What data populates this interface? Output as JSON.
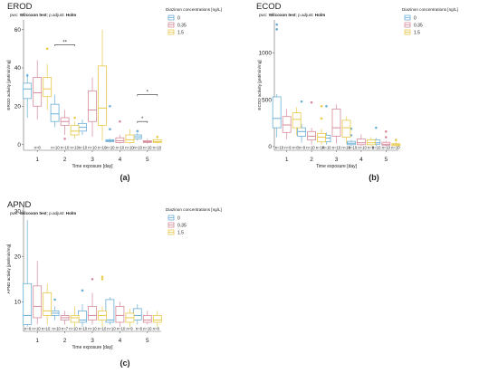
{
  "figure": {
    "panel_labels": [
      "(a)",
      "(b)",
      "(c)"
    ]
  },
  "colors": {
    "0": "#6aaed6",
    "0.35": "#d68a9a",
    "1.5": "#e8c94a",
    "axis": "#666666",
    "text": "#222222"
  },
  "chart_data": [
    {
      "type": "box",
      "title": "EROD",
      "subtitle": {
        "prefix": "pwc: ",
        "test": "Wilcoxon test",
        "mid": "; p.adjust: ",
        "adjust": "Holm"
      },
      "xlabel": "Time exposure [day]",
      "ylabel": "EROD activity [pM/min/mg]",
      "ylim": [
        -3,
        65
      ],
      "yticks": [
        0,
        20,
        40,
        60
      ],
      "categories": [
        "1",
        "2",
        "3",
        "4",
        "5"
      ],
      "legend": {
        "title": "Diazinon concentrations [ng/L]",
        "entries": [
          "0",
          "0.35",
          "1.5"
        ],
        "position": "top-right"
      },
      "n_labels": [
        "n=8",
        "n=10 n=10 n=10",
        "n=10 n=10 n=10",
        "n=10 n=10 n=10",
        "n=10 n=10 n=10"
      ],
      "series": [
        {
          "name": "0",
          "boxes": [
            {
              "low": 14,
              "q1": 24,
              "med": 29,
              "q3": 32,
              "high": 37,
              "out": [
                36
              ]
            },
            {
              "low": 9,
              "q1": 12,
              "med": 16,
              "q3": 21,
              "high": 26,
              "out": []
            },
            {
              "low": 5,
              "q1": 7,
              "med": 9,
              "q3": 11,
              "high": 13,
              "out": []
            },
            {
              "low": 1,
              "q1": 1.5,
              "med": 2,
              "q3": 2.5,
              "high": 3,
              "out": [
                20,
                8
              ]
            },
            {
              "low": 2,
              "q1": 3,
              "med": 4,
              "q3": 5,
              "high": 6,
              "out": [
                7
              ]
            }
          ]
        },
        {
          "name": "0.35",
          "boxes": [
            {
              "low": 13,
              "q1": 20,
              "med": 27,
              "q3": 35,
              "high": 44,
              "out": []
            },
            {
              "low": 5,
              "q1": 10,
              "med": 12,
              "q3": 14,
              "high": 18,
              "out": [
                3
              ]
            },
            {
              "low": 4,
              "q1": 12,
              "med": 18,
              "q3": 28,
              "high": 35,
              "out": []
            },
            {
              "low": 0.5,
              "q1": 1,
              "med": 2,
              "q3": 3.5,
              "high": 5,
              "out": [
                12
              ]
            },
            {
              "low": 0.5,
              "q1": 1,
              "med": 1.5,
              "q3": 2,
              "high": 3,
              "out": []
            }
          ]
        },
        {
          "name": "1.5",
          "boxes": [
            {
              "low": 18,
              "q1": 25,
              "med": 29,
              "q3": 35,
              "high": 42,
              "out": [
                50
              ]
            },
            {
              "low": 3,
              "q1": 5,
              "med": 7,
              "q3": 10,
              "high": 12,
              "out": [
                14
              ]
            },
            {
              "low": 2,
              "q1": 10,
              "med": 19,
              "q3": 41,
              "high": 60,
              "out": []
            },
            {
              "low": 0.5,
              "q1": 1,
              "med": 2.5,
              "q3": 5,
              "high": 8,
              "out": []
            },
            {
              "low": 0.5,
              "q1": 1,
              "med": 1.5,
              "q3": 2.5,
              "high": 3,
              "out": [
                4
              ]
            }
          ]
        }
      ],
      "brackets": [
        {
          "category": "2",
          "from": "0",
          "to": "1.5",
          "y": 52,
          "label": "**"
        },
        {
          "category": "5",
          "from": "0",
          "to": "1.5",
          "y": 26,
          "label": "*"
        },
        {
          "category": "5",
          "from": "0",
          "to": "0.35",
          "y": 12,
          "label": "*"
        }
      ]
    },
    {
      "type": "box",
      "title": "ECOD",
      "subtitle": {
        "prefix": "pwc: ",
        "test": "Wilcoxon test",
        "mid": "; p.adjust: ",
        "adjust": "Holm"
      },
      "xlabel": "Time exposure [day]",
      "ylabel": "ECOD activity [pM/min/mg]",
      "ylim": [
        -40,
        1350
      ],
      "yticks": [
        0,
        500,
        1000
      ],
      "categories": [
        "1",
        "2",
        "3",
        "4",
        "5"
      ],
      "legend": {
        "title": "Diazinon concentrations [ng/L]",
        "entries": [
          "0",
          "0.35",
          "1.5"
        ],
        "position": "top-right"
      },
      "n_labels": [
        "n=10 n=9 n=8",
        "n=9 n=10 n=10",
        "n=10 n=10 n=10",
        "n=10 n=10 n=9",
        "n=10 n=10 n=10"
      ],
      "series": [
        {
          "name": "0",
          "boxes": [
            {
              "low": 100,
              "q1": 200,
              "med": 300,
              "q3": 530,
              "high": 560,
              "out": [
                1300,
                1250
              ]
            },
            {
              "low": 40,
              "q1": 110,
              "med": 160,
              "q3": 200,
              "high": 240,
              "out": [
                480
              ]
            },
            {
              "low": 20,
              "q1": 50,
              "med": 90,
              "q3": 120,
              "high": 150,
              "out": [
                430
              ]
            },
            {
              "low": 5,
              "q1": 20,
              "med": 35,
              "q3": 55,
              "high": 70,
              "out": [
                190,
                120
              ]
            },
            {
              "low": 5,
              "q1": 25,
              "med": 40,
              "q3": 70,
              "high": 90,
              "out": [
                200
              ]
            }
          ]
        },
        {
          "name": "0.35",
          "boxes": [
            {
              "low": 80,
              "q1": 150,
              "med": 230,
              "q3": 320,
              "high": 400,
              "out": []
            },
            {
              "low": 20,
              "q1": 70,
              "med": 110,
              "q3": 160,
              "high": 200,
              "out": [
                470
              ]
            },
            {
              "low": 30,
              "q1": 110,
              "med": 200,
              "q3": 400,
              "high": 450,
              "out": []
            },
            {
              "low": 5,
              "q1": 20,
              "med": 40,
              "q3": 80,
              "high": 130,
              "out": []
            },
            {
              "low": 5,
              "q1": 15,
              "med": 25,
              "q3": 45,
              "high": 60,
              "out": [
                100,
                160
              ]
            }
          ]
        },
        {
          "name": "1.5",
          "boxes": [
            {
              "low": 120,
              "q1": 200,
              "med": 290,
              "q3": 360,
              "high": 420,
              "out": []
            },
            {
              "low": 20,
              "q1": 50,
              "med": 100,
              "q3": 140,
              "high": 190,
              "out": [
                430,
                300
              ]
            },
            {
              "low": 30,
              "q1": 100,
              "med": 200,
              "q3": 280,
              "high": 320,
              "out": []
            },
            {
              "low": 5,
              "q1": 20,
              "med": 40,
              "q3": 70,
              "high": 100,
              "out": []
            },
            {
              "low": 5,
              "q1": 10,
              "med": 20,
              "q3": 30,
              "high": 50,
              "out": [
                70
              ]
            }
          ]
        }
      ],
      "brackets": []
    },
    {
      "type": "box",
      "title": "APND",
      "subtitle": {
        "prefix": "pwc: ",
        "test": "Wilcoxon test",
        "mid": "; p.adjust: ",
        "adjust": "Holm"
      },
      "xlabel": "Time exposure [day]",
      "ylabel": "APND activity [pM/min/mg]",
      "ylim": [
        3.5,
        31
      ],
      "yticks": [
        10,
        20,
        30
      ],
      "categories": [
        "1",
        "2",
        "3",
        "4",
        "5"
      ],
      "legend": {
        "title": "Diazinon concentrations [ng/L]",
        "entries": [
          "0",
          "0.35",
          "1.5"
        ],
        "position": "top-right"
      },
      "n_labels": [
        "n=6 n=10 n=10",
        "n=10 n=7 n=10",
        "n=10 n=10 n=10",
        "n=10 n=10 n=9",
        "n=6 n=10 n=8"
      ],
      "series": [
        {
          "name": "0",
          "boxes": [
            {
              "low": 4.5,
              "q1": 5,
              "med": 7,
              "q3": 14,
              "high": 28,
              "out": []
            },
            {
              "low": 6,
              "q1": 7,
              "med": 7.5,
              "q3": 8,
              "high": 9,
              "out": [
                10.5
              ]
            },
            {
              "low": 4.5,
              "q1": 5.5,
              "med": 6,
              "q3": 8,
              "high": 9.5,
              "out": [
                12.5
              ]
            },
            {
              "low": 5,
              "q1": 5.5,
              "med": 6,
              "q3": 10.5,
              "high": 11,
              "out": []
            },
            {
              "low": 5,
              "q1": 6,
              "med": 7,
              "q3": 8.5,
              "high": 9.5,
              "out": []
            }
          ]
        },
        {
          "name": "0.35",
          "boxes": [
            {
              "low": 5,
              "q1": 6.5,
              "med": 9,
              "q3": 13.5,
              "high": 19,
              "out": []
            },
            {
              "low": 5,
              "q1": 6,
              "med": 6.5,
              "q3": 7,
              "high": 8,
              "out": []
            },
            {
              "low": 5,
              "q1": 6,
              "med": 7,
              "q3": 9,
              "high": 12,
              "out": [
                15
              ]
            },
            {
              "low": 4.5,
              "q1": 5.5,
              "med": 7,
              "q3": 9,
              "high": 10,
              "out": []
            },
            {
              "low": 5,
              "q1": 5.5,
              "med": 6,
              "q3": 7,
              "high": 8,
              "out": []
            }
          ]
        },
        {
          "name": "1.5",
          "boxes": [
            {
              "low": 5,
              "q1": 7,
              "med": 8,
              "q3": 12,
              "high": 14,
              "out": []
            },
            {
              "low": 4.5,
              "q1": 5.5,
              "med": 6.5,
              "q3": 7,
              "high": 9,
              "out": []
            },
            {
              "low": 4.5,
              "q1": 6,
              "med": 7,
              "q3": 8,
              "high": 9,
              "out": [
                15.5,
                15
              ]
            },
            {
              "low": 4.5,
              "q1": 5.5,
              "med": 6.5,
              "q3": 7.5,
              "high": 8.5,
              "out": []
            },
            {
              "low": 4.5,
              "q1": 5.5,
              "med": 6,
              "q3": 7,
              "high": 8,
              "out": []
            }
          ]
        }
      ],
      "brackets": []
    }
  ]
}
